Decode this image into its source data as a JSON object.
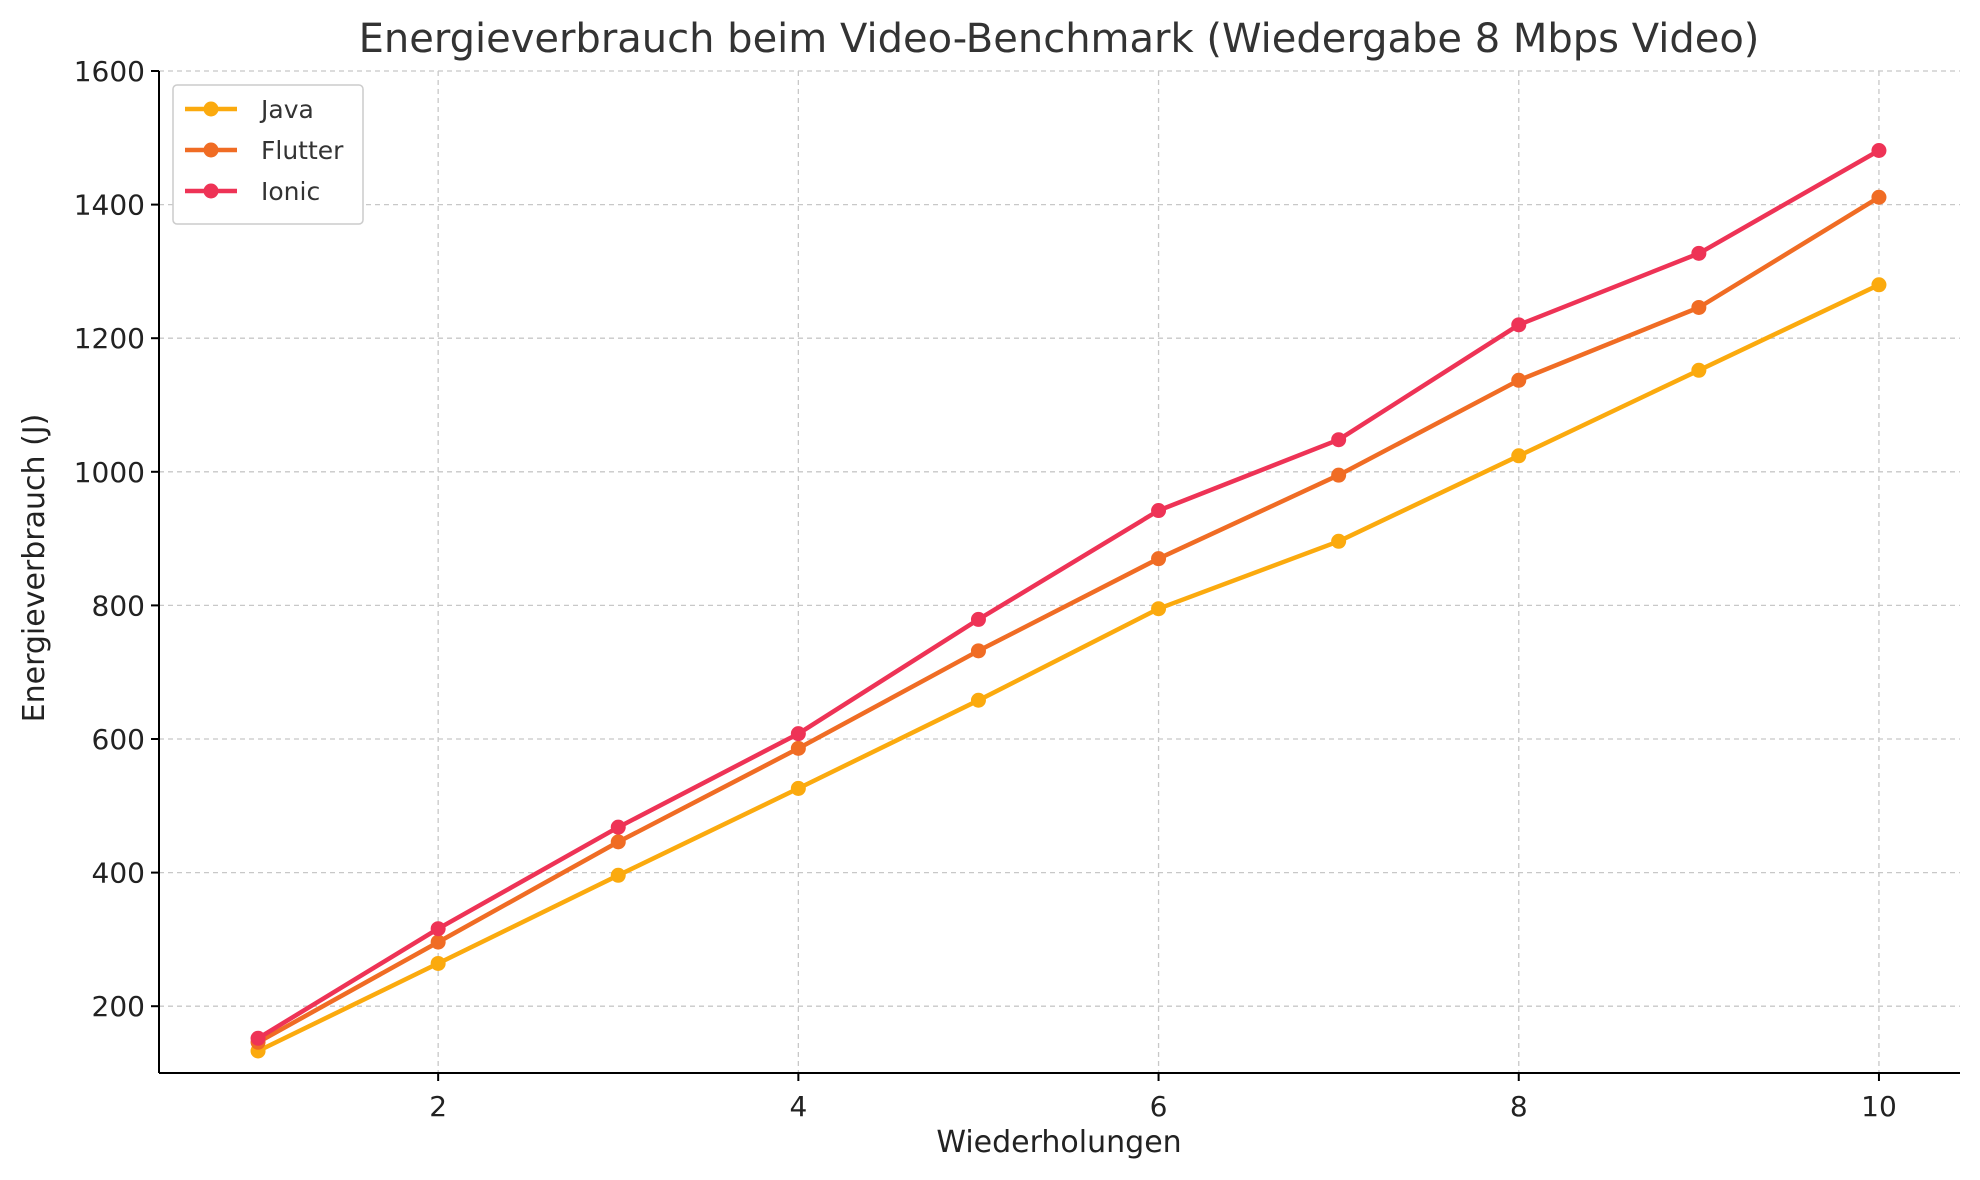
{
  "chart_data": {
    "type": "line",
    "title": "Energieverbrauch beim Video-Benchmark (Wiedergabe 8 Mbps Video)",
    "xlabel": "Wiederholungen",
    "ylabel": "Energieverbrauch (J)",
    "x": [
      1,
      2,
      3,
      4,
      5,
      6,
      7,
      8,
      9,
      10
    ],
    "xlim": [
      0.45,
      10.45
    ],
    "ylim": [
      100,
      1600
    ],
    "xticks": [
      2,
      4,
      6,
      8,
      10
    ],
    "yticks": [
      200,
      400,
      600,
      800,
      1000,
      1200,
      1400,
      1600
    ],
    "grid": true,
    "legend_position": "top-left",
    "series": [
      {
        "name": "Java",
        "color": "#FBAA0E",
        "values": [
          133,
          264,
          396,
          526,
          658,
          795,
          896,
          1024,
          1152,
          1280
        ]
      },
      {
        "name": "Flutter",
        "color": "#F06C24",
        "values": [
          146,
          296,
          446,
          586,
          732,
          870,
          995,
          1137,
          1246,
          1411
        ]
      },
      {
        "name": "Ionic",
        "color": "#EE3356",
        "values": [
          152,
          316,
          468,
          608,
          779,
          942,
          1048,
          1220,
          1327,
          1481
        ]
      }
    ]
  }
}
